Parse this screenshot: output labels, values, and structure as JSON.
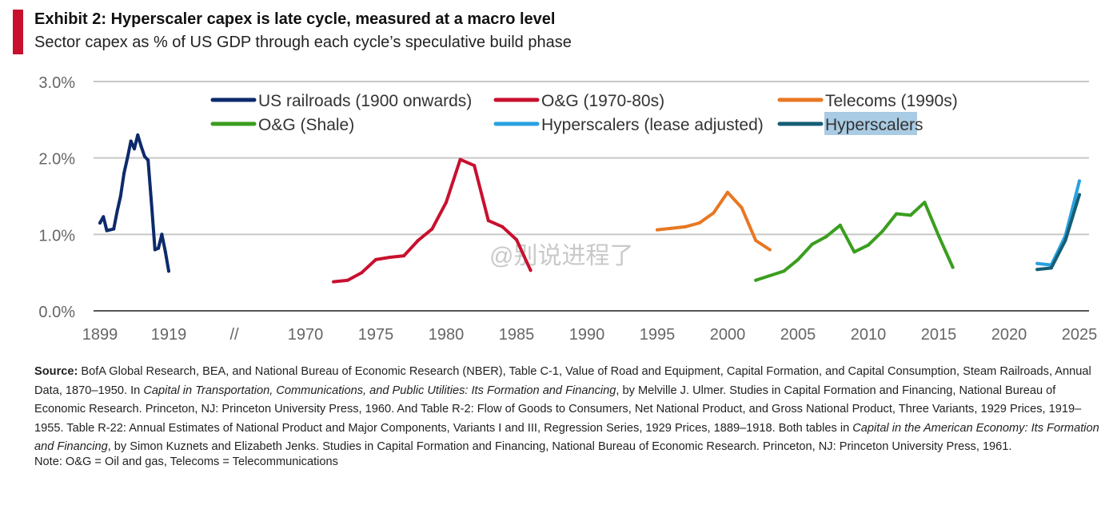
{
  "header": {
    "title": "Exhibit 2: Hyperscaler capex is late cycle, measured at a macro level",
    "subtitle": "Sector capex as % of US GDP through each cycle’s speculative build phase",
    "accent_color": "#c8102e"
  },
  "chart_data": {
    "type": "line",
    "title": "Exhibit 2: Hyperscaler capex is late cycle, measured at a macro level",
    "subtitle": "Sector capex as % of US GDP through each cycle’s speculative build phase",
    "xlabel": "",
    "ylabel": "",
    "y_unit": "% of US GDP",
    "ylim": [
      0,
      3.0
    ],
    "y_ticks": [
      "0.0%",
      "1.0%",
      "2.0%",
      "3.0%"
    ],
    "x_ticks": [
      "1899",
      "1919",
      "//",
      "1970",
      "1975",
      "1980",
      "1985",
      "1990",
      "1995",
      "2000",
      "2005",
      "2010",
      "2015",
      "2020",
      "2025"
    ],
    "x_axis_note": "broken axis: 1899–1919, then 1970–2025",
    "grid": true,
    "legend_position": "top",
    "series": [
      {
        "name": "US railroads (1900 onwards)",
        "color": "#0d2a6b",
        "x": [
          1899,
          1900,
          1901,
          1902,
          1903,
          1904,
          1905,
          1906,
          1907,
          1908,
          1909,
          1910,
          1911,
          1912,
          1913,
          1914,
          1915,
          1916,
          1917,
          1918,
          1919
        ],
        "y": [
          1.15,
          1.23,
          1.05,
          1.06,
          1.07,
          1.3,
          1.5,
          1.8,
          2.0,
          2.22,
          2.12,
          2.3,
          2.15,
          2.02,
          1.97,
          1.4,
          0.8,
          0.82,
          1.0,
          0.78,
          0.52
        ]
      },
      {
        "name": "O&G (1970-80s)",
        "color": "#c8102e",
        "x": [
          1972,
          1973,
          1974,
          1975,
          1976,
          1977,
          1978,
          1979,
          1980,
          1981,
          1982,
          1983,
          1984,
          1985,
          1986
        ],
        "y": [
          0.38,
          0.4,
          0.5,
          0.67,
          0.7,
          0.72,
          0.92,
          1.07,
          1.42,
          1.98,
          1.9,
          1.18,
          1.1,
          0.93,
          0.53
        ]
      },
      {
        "name": "Telecoms (1990s)",
        "color": "#e87722",
        "x": [
          1995,
          1996,
          1997,
          1998,
          1999,
          2000,
          2001,
          2002,
          2003
        ],
        "y": [
          1.06,
          1.08,
          1.1,
          1.15,
          1.28,
          1.55,
          1.35,
          0.92,
          0.8
        ]
      },
      {
        "name": "O&G (Shale)",
        "color": "#3a9e1f",
        "x": [
          2002,
          2003,
          2004,
          2005,
          2006,
          2007,
          2008,
          2009,
          2010,
          2011,
          2012,
          2013,
          2014,
          2015,
          2016
        ],
        "y": [
          0.4,
          0.46,
          0.52,
          0.67,
          0.87,
          0.97,
          1.12,
          0.77,
          0.86,
          1.04,
          1.27,
          1.25,
          1.42,
          0.98,
          0.57
        ]
      },
      {
        "name": "Hyperscalers (lease adjusted)",
        "color": "#2aa1e0",
        "x": [
          2022,
          2023,
          2024,
          2025
        ],
        "y": [
          0.62,
          0.6,
          0.98,
          1.7
        ]
      },
      {
        "name": "Hyperscalers",
        "color": "#155e75",
        "x": [
          2022,
          2023,
          2024,
          2025
        ],
        "y": [
          0.54,
          0.56,
          0.92,
          1.52
        ]
      }
    ]
  },
  "legend": {
    "items": [
      {
        "label": "US railroads (1900 onwards)",
        "color": "#0d2a6b"
      },
      {
        "label": "O&G (1970-80s)",
        "color": "#c8102e"
      },
      {
        "label": "Telecoms (1990s)",
        "color": "#e87722"
      },
      {
        "label": "O&G (Shale)",
        "color": "#3a9e1f"
      },
      {
        "label": "Hyperscalers (lease adjusted)",
        "color": "#2aa1e0"
      },
      {
        "label": "Hyperscalers",
        "color": "#155e75"
      }
    ],
    "highlight_color": "#a9cbe3"
  },
  "watermark": {
    "text": "@别说进程了"
  },
  "footer": {
    "source_label": "Source:",
    "source_part1": " BofA Global Research, BEA, and National Bureau of Economic Research (NBER), Table C-1, Value of Road and Equipment, Capital Formation, and Capital Consumption, Steam Railroads, Annual Data, 1870–1950. In ",
    "source_italic1": "Capital in Transportation, Communications, and Public Utilities: Its Formation and Financing",
    "source_part2": ", by Melville J. Ulmer. Studies in Capital Formation and Financing, National Bureau of Economic Research. Princeton, NJ: Princeton University Press, 1960. And Table R-2: Flow of Goods to Consumers, Net National Product, and Gross National Product, Three Variants, 1929 Prices, 1919–1955. Table R-22: Annual Estimates of National Product and Major Components, Variants I and III, Regression Series, 1929 Prices, 1889–1918. Both tables in ",
    "source_italic2": "Capital in the American Economy: Its Formation and Financing",
    "source_part3": ", by Simon Kuznets and Elizabeth Jenks. Studies in Capital Formation and Financing, National Bureau of Economic Research. Princeton, NJ: Princeton University Press, 1961.",
    "note": "Note: O&G = Oil and gas, Telecoms = Telecommunications"
  }
}
